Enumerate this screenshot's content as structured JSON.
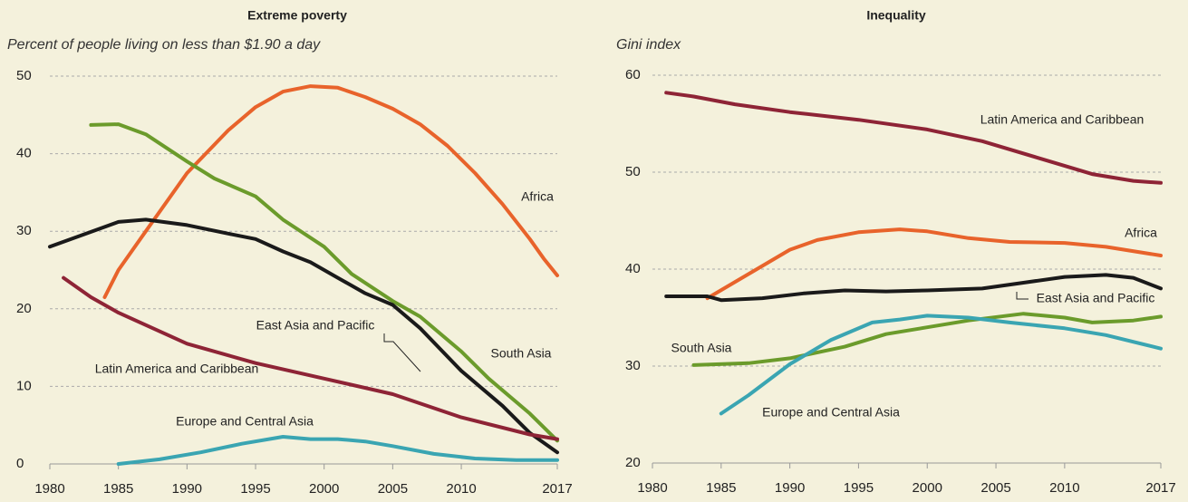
{
  "chart_data": [
    {
      "type": "line",
      "title": "Extreme poverty",
      "subtitle": "Percent of people living on less than $1.90 a day",
      "xlim": [
        1980,
        2017
      ],
      "xticks": [
        1980,
        1985,
        1990,
        1995,
        2000,
        2005,
        2010,
        2017
      ],
      "ylim": [
        0,
        50
      ],
      "yticks": [
        0,
        10,
        20,
        30,
        40,
        50
      ],
      "grid": true,
      "series": [
        {
          "name": "Africa",
          "color": "#e8632b",
          "x": [
            1984,
            1985,
            1987,
            1990,
            1993,
            1995,
            1997,
            1999,
            2001,
            2003,
            2005,
            2007,
            2009,
            2011,
            2013,
            2015,
            2016,
            2017
          ],
          "values": [
            21.5,
            25,
            30,
            37.5,
            43,
            46,
            48,
            48.7,
            48.5,
            47.3,
            45.8,
            43.8,
            41,
            37.5,
            33.5,
            29,
            26.5,
            24.3
          ]
        },
        {
          "name": "South Asia",
          "color": "#6b9b2b",
          "x": [
            1983,
            1985,
            1987,
            1990,
            1992,
            1995,
            1997,
            2000,
            2002,
            2005,
            2007,
            2010,
            2012,
            2015,
            2017
          ],
          "values": [
            43.7,
            43.8,
            42.5,
            39,
            36.8,
            34.5,
            31.5,
            28,
            24.5,
            21,
            19,
            14.5,
            11,
            6.5,
            3
          ]
        },
        {
          "name": "East Asia and Pacific",
          "color": "#1a1a1a",
          "x": [
            1980,
            1985,
            1987,
            1990,
            1993,
            1995,
            1997,
            1999,
            2001,
            2003,
            2005,
            2007,
            2010,
            2013,
            2015,
            2017
          ],
          "values": [
            28,
            31.2,
            31.5,
            30.8,
            29.7,
            29,
            27.4,
            26,
            24,
            22,
            20.5,
            17.5,
            12,
            7.5,
            4,
            1.5
          ]
        },
        {
          "name": "Latin America and Caribbean",
          "color": "#8e2436",
          "x": [
            1981,
            1983,
            1985,
            1990,
            1995,
            2000,
            2005,
            2010,
            2015,
            2017
          ],
          "values": [
            24,
            21.5,
            19.5,
            15.5,
            13,
            11,
            9,
            6,
            3.8,
            3.2
          ]
        },
        {
          "name": "Europe and Central Asia",
          "color": "#3aa5b2",
          "x": [
            1985,
            1988,
            1991,
            1994,
            1997,
            1999,
            2001,
            2003,
            2005,
            2008,
            2011,
            2014,
            2017
          ],
          "values": [
            0,
            0.6,
            1.5,
            2.6,
            3.5,
            3.2,
            3.2,
            2.9,
            2.3,
            1.3,
            0.7,
            0.5,
            0.5
          ]
        }
      ]
    },
    {
      "type": "line",
      "title": "Inequality",
      "subtitle": "Gini index",
      "xlim": [
        1980,
        2017
      ],
      "xticks": [
        1980,
        1985,
        1990,
        1995,
        2000,
        2005,
        2010,
        2017
      ],
      "ylim": [
        20,
        60
      ],
      "yticks": [
        20,
        30,
        40,
        50,
        60
      ],
      "grid": true,
      "series": [
        {
          "name": "Africa",
          "color": "#e8632b",
          "x": [
            1984,
            1987,
            1990,
            1992,
            1995,
            1998,
            2000,
            2003,
            2006,
            2010,
            2013,
            2017
          ],
          "values": [
            37,
            39.5,
            42,
            43,
            43.8,
            44.1,
            43.9,
            43.2,
            42.8,
            42.7,
            42.3,
            41.4
          ]
        },
        {
          "name": "South Asia",
          "color": "#6b9b2b",
          "x": [
            1983,
            1987,
            1990,
            1994,
            1997,
            2000,
            2003,
            2007,
            2010,
            2012,
            2015,
            2017
          ],
          "values": [
            30.1,
            30.3,
            30.8,
            32,
            33.3,
            34,
            34.7,
            35.4,
            35,
            34.5,
            34.7,
            35.1
          ]
        },
        {
          "name": "East Asia and Pacific",
          "color": "#1a1a1a",
          "x": [
            1981,
            1984,
            1985,
            1988,
            1991,
            1994,
            1997,
            2000,
            2004,
            2007,
            2010,
            2013,
            2015,
            2017
          ],
          "values": [
            37.2,
            37.2,
            36.8,
            37,
            37.5,
            37.8,
            37.7,
            37.8,
            38,
            38.6,
            39.2,
            39.4,
            39.1,
            38
          ]
        },
        {
          "name": "Latin America and Caribbean",
          "color": "#8e2436",
          "x": [
            1981,
            1983,
            1986,
            1990,
            1995,
            2000,
            2004,
            2008,
            2012,
            2015,
            2017
          ],
          "values": [
            58.2,
            57.8,
            57,
            56.2,
            55.4,
            54.4,
            53.2,
            51.5,
            49.8,
            49.1,
            48.9
          ]
        },
        {
          "name": "Europe and Central Asia",
          "color": "#3aa5b2",
          "x": [
            1985,
            1987,
            1990,
            1993,
            1996,
            1998,
            2000,
            2003,
            2006,
            2010,
            2013,
            2017
          ],
          "values": [
            25.1,
            27,
            30.2,
            32.7,
            34.5,
            34.8,
            35.2,
            35,
            34.5,
            33.9,
            33.2,
            31.8
          ]
        }
      ]
    }
  ]
}
